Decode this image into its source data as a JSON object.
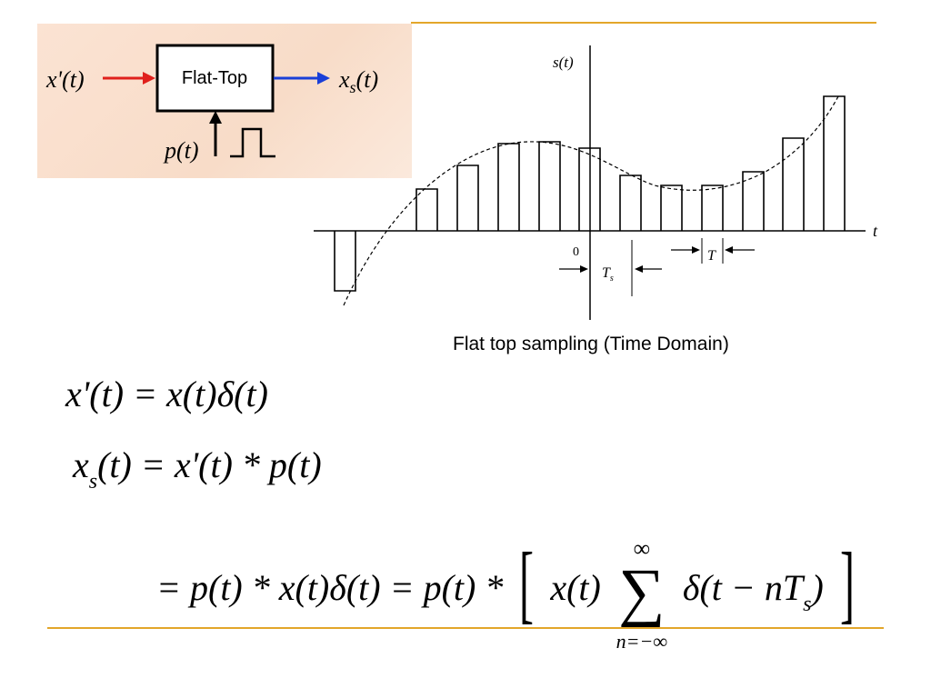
{
  "block_diagram": {
    "input_label": "x'(t)",
    "block_label": "Flat-Top",
    "output_main": "x",
    "output_sub": "s",
    "output_arg": "(t)",
    "pulse_label": "p(t)",
    "colors": {
      "input_arrow": "#e0201c",
      "output_arrow": "#1a3fd8",
      "panel_bg": "#f8dcc8"
    }
  },
  "plot": {
    "y_label": "s(t)",
    "x_label": "t",
    "origin_label": "0",
    "ts_label_main": "T",
    "ts_label_sub": "s",
    "t_label": "T"
  },
  "caption": "Flat top sampling (Time Domain)",
  "equations": {
    "eq1": "x'(t) = x(t)δ(t)",
    "eq2_lhs_main": "x",
    "eq2_lhs_sub": "s",
    "eq2_rest": "(t) = x'(t) * p(t)",
    "eq3_left": "= p(t) * x(t)δ(t) = p(t) *",
    "eq3_inner_left": "x(t)",
    "eq3_sum_top": "∞",
    "eq3_sum_symbol": "∑",
    "eq3_sum_bottom": "n=−∞",
    "eq3_inner_right": "δ(t − nT",
    "eq3_inner_sub": "s",
    "eq3_inner_close": ")"
  }
}
